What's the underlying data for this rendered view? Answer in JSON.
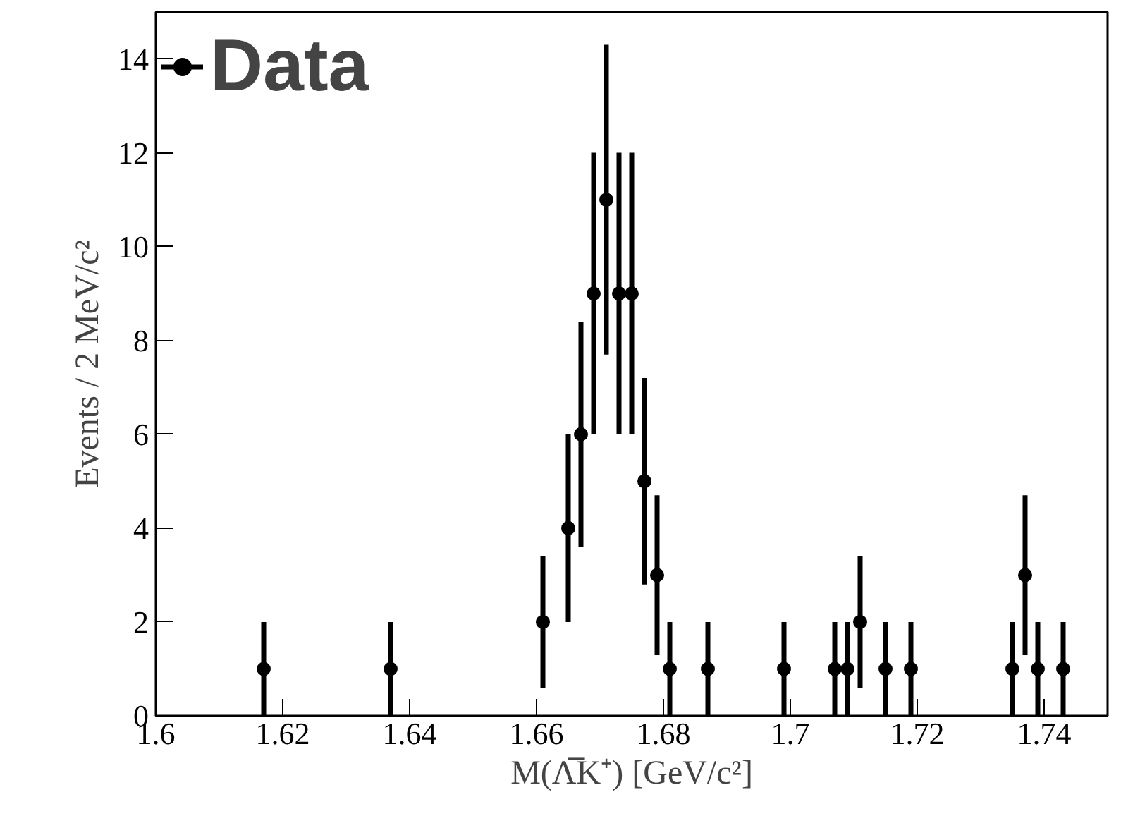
{
  "chart_data": {
    "type": "scatter",
    "xlabel": "M(Λ̅K⁺) [GeV/c²]",
    "ylabel": "Events / 2 MeV/c²",
    "x": [
      1.617,
      1.637,
      1.661,
      1.665,
      1.667,
      1.669,
      1.671,
      1.673,
      1.675,
      1.677,
      1.679,
      1.681,
      1.687,
      1.699,
      1.707,
      1.709,
      1.711,
      1.715,
      1.719,
      1.735,
      1.737,
      1.739,
      1.743
    ],
    "series": [
      {
        "name": "Data",
        "color": "#000000",
        "values": [
          1,
          1,
          2,
          4,
          6,
          9,
          11,
          9,
          9,
          5,
          3,
          1,
          1,
          1,
          1,
          1,
          2,
          1,
          1,
          1,
          3,
          1,
          1
        ],
        "errors": [
          1,
          1,
          1.4,
          2,
          2.4,
          3,
          3.3,
          3,
          3,
          2.2,
          1.7,
          1,
          1,
          1,
          1,
          1,
          1.4,
          1,
          1,
          1,
          1.7,
          1,
          1
        ]
      }
    ],
    "xlim": [
      1.6,
      1.75
    ],
    "xticks": [
      1.6,
      1.62,
      1.64,
      1.66,
      1.68,
      1.7,
      1.72,
      1.74
    ],
    "ylim": [
      0,
      15
    ],
    "yticks": [
      0,
      2,
      4,
      6,
      8,
      10,
      12,
      14
    ],
    "grid": false,
    "legend": "top left",
    "marker": "circle"
  }
}
